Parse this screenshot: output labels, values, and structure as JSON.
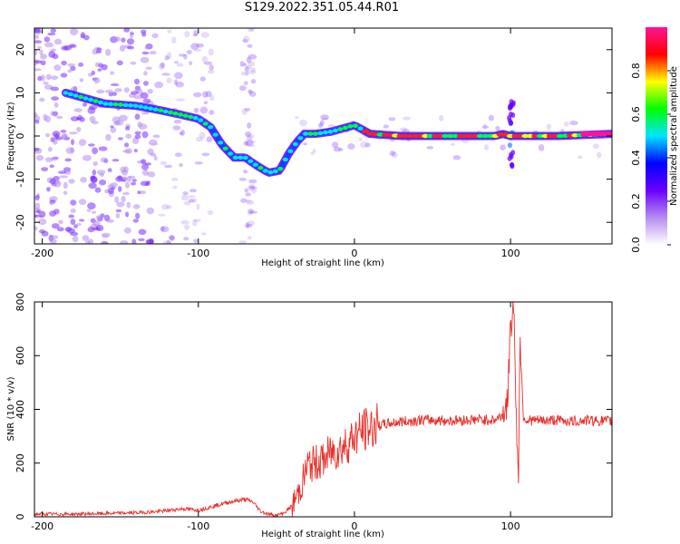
{
  "title": "S129.2022.351.05.44.R01",
  "chart_data": [
    {
      "type": "heatmap",
      "xlabel": "Height of straight line (km)",
      "ylabel": "Frequency (Hz)",
      "xlim": [
        -205,
        165
      ],
      "ylim": [
        -25,
        25
      ],
      "xticks": [
        "-200",
        "-100",
        "0",
        "100"
      ],
      "yticks": [
        "20",
        "10",
        "0",
        "-10",
        "-20"
      ],
      "colorbar": {
        "label": "Normalized spectral amplitude",
        "range": [
          0,
          1
        ],
        "ticks": [
          "0.0",
          "0.2",
          "0.4",
          "0.6",
          "0.8"
        ],
        "colors": [
          "#ffffff",
          "#b58cf0",
          "#6a00ff",
          "#0000ff",
          "#00e5ff",
          "#00ff00",
          "#ffff00",
          "#ff0000",
          "#ff1493"
        ]
      },
      "ridge": {
        "x": [
          -185,
          -175,
          -160,
          -140,
          -125,
          -112,
          -100,
          -92,
          -85,
          -77,
          -70,
          -62,
          -55,
          -48,
          -42,
          -36,
          -32,
          -25,
          -15,
          -5,
          0,
          10,
          30,
          60,
          90,
          95,
          100,
          105,
          130,
          165
        ],
        "y": [
          10,
          9,
          7.5,
          7,
          6,
          5,
          4,
          2,
          -2,
          -5,
          -5,
          -7,
          -8.5,
          -8,
          -4,
          -1,
          0.5,
          0.5,
          1,
          2,
          2.5,
          0.5,
          0,
          0,
          0,
          0.5,
          0,
          0,
          0,
          0.5
        ]
      }
    },
    {
      "type": "line",
      "xlabel": "Height of straight line (km)",
      "ylabel": "SNR (10 * v/v)",
      "xlim": [
        -205,
        165
      ],
      "ylim": [
        0,
        800
      ],
      "xticks": [
        "-200",
        "-100",
        "0",
        "100"
      ],
      "yticks": [
        "800",
        "600",
        "400",
        "200",
        "0"
      ],
      "color": "#e8302a",
      "series": [
        {
          "x": [
            -205,
            -180,
            -160,
            -140,
            -125,
            -110,
            -100,
            -90,
            -80,
            -70,
            -65,
            -60,
            -55,
            -50,
            -45,
            -40,
            -35,
            -30,
            -25,
            -20,
            -15,
            -10,
            -5,
            0,
            5,
            10,
            15,
            20,
            25,
            30,
            35,
            40,
            50,
            60,
            70,
            80,
            90,
            95,
            98,
            100,
            102,
            104,
            105,
            106,
            108,
            110,
            120,
            130,
            140,
            150,
            165
          ],
          "y": [
            10,
            10,
            12,
            15,
            20,
            30,
            25,
            40,
            55,
            65,
            55,
            20,
            10,
            5,
            15,
            40,
            100,
            190,
            200,
            210,
            240,
            250,
            270,
            300,
            320,
            330,
            340,
            345,
            350,
            355,
            355,
            360,
            360,
            358,
            360,
            362,
            360,
            380,
            420,
            700,
            800,
            300,
            110,
            700,
            380,
            360,
            358,
            360,
            355,
            360,
            355
          ]
        }
      ]
    }
  ]
}
